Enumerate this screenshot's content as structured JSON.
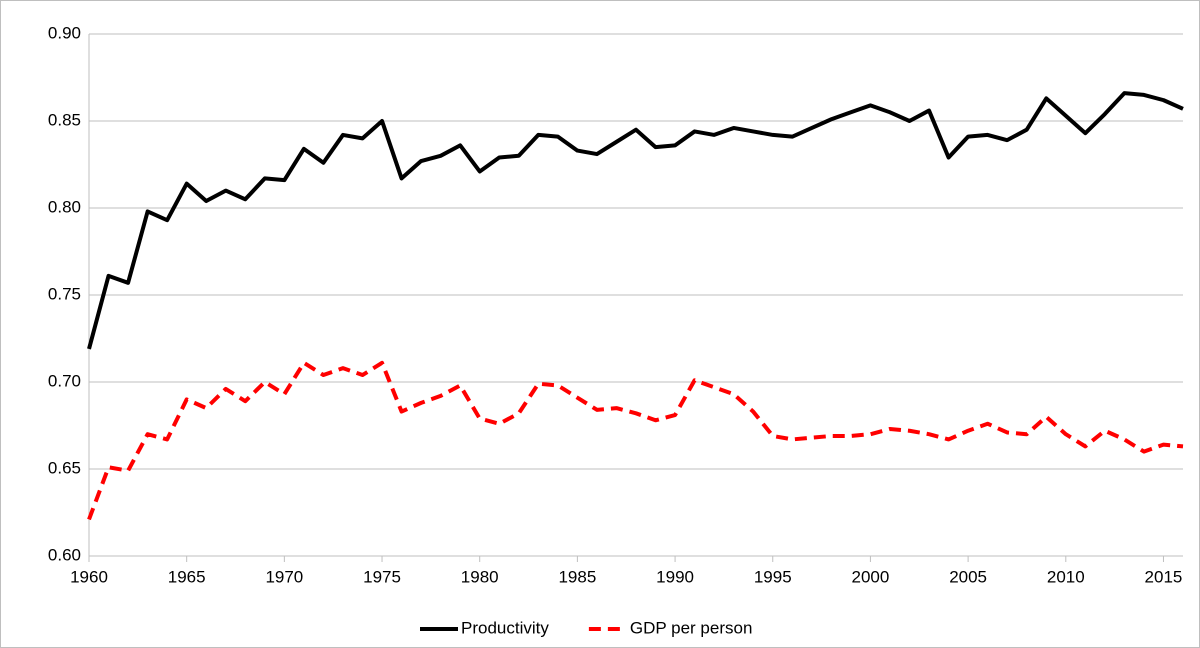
{
  "chart_data": {
    "type": "line",
    "x": [
      1960,
      1961,
      1962,
      1963,
      1964,
      1965,
      1966,
      1967,
      1968,
      1969,
      1970,
      1971,
      1972,
      1973,
      1974,
      1975,
      1976,
      1977,
      1978,
      1979,
      1980,
      1981,
      1982,
      1983,
      1984,
      1985,
      1986,
      1987,
      1988,
      1989,
      1990,
      1991,
      1992,
      1993,
      1994,
      1995,
      1996,
      1997,
      1998,
      1999,
      2000,
      2001,
      2002,
      2003,
      2004,
      2005,
      2006,
      2007,
      2008,
      2009,
      2010,
      2011,
      2012,
      2013,
      2014,
      2015,
      2016
    ],
    "series": [
      {
        "name": "Productivity",
        "color": "#000000",
        "style": "solid",
        "values": [
          0.719,
          0.761,
          0.757,
          0.798,
          0.793,
          0.814,
          0.804,
          0.81,
          0.805,
          0.817,
          0.816,
          0.834,
          0.826,
          0.842,
          0.84,
          0.85,
          0.817,
          0.827,
          0.83,
          0.836,
          0.821,
          0.829,
          0.83,
          0.842,
          0.841,
          0.833,
          0.831,
          0.838,
          0.845,
          0.835,
          0.836,
          0.844,
          0.842,
          0.846,
          0.844,
          0.842,
          0.841,
          0.846,
          0.851,
          0.855,
          0.859,
          0.855,
          0.85,
          0.856,
          0.829,
          0.841,
          0.842,
          0.839,
          0.845,
          0.863,
          0.853,
          0.843,
          0.854,
          0.866,
          0.865,
          0.862,
          0.857
        ]
      },
      {
        "name": "GDP per person",
        "color": "#ff0000",
        "style": "dashed",
        "values": [
          0.621,
          0.651,
          0.649,
          0.67,
          0.667,
          0.69,
          0.685,
          0.696,
          0.689,
          0.7,
          0.693,
          0.711,
          0.704,
          0.708,
          0.704,
          0.711,
          0.683,
          0.688,
          0.692,
          0.698,
          0.679,
          0.676,
          0.682,
          0.699,
          0.698,
          0.691,
          0.684,
          0.685,
          0.682,
          0.678,
          0.681,
          0.701,
          0.697,
          0.693,
          0.683,
          0.669,
          0.667,
          0.668,
          0.669,
          0.669,
          0.67,
          0.673,
          0.672,
          0.67,
          0.667,
          0.672,
          0.676,
          0.671,
          0.67,
          0.68,
          0.67,
          0.663,
          0.672,
          0.667,
          0.66,
          0.664,
          0.663
        ]
      }
    ],
    "xlim": [
      1960,
      2016
    ],
    "xticks": [
      1960,
      1965,
      1970,
      1975,
      1980,
      1985,
      1990,
      1995,
      2000,
      2005,
      2010,
      2015
    ],
    "ylim": [
      0.6,
      0.9
    ],
    "yticks": [
      {
        "value": 0.6,
        "label": "0.60"
      },
      0.65,
      {
        "value": 0.7,
        "label": "0.70"
      },
      0.75,
      {
        "value": 0.8,
        "label": "0.80"
      },
      0.85,
      {
        "value": 0.9,
        "label": "0.90"
      }
    ],
    "grid": true,
    "legend": "bottom"
  }
}
